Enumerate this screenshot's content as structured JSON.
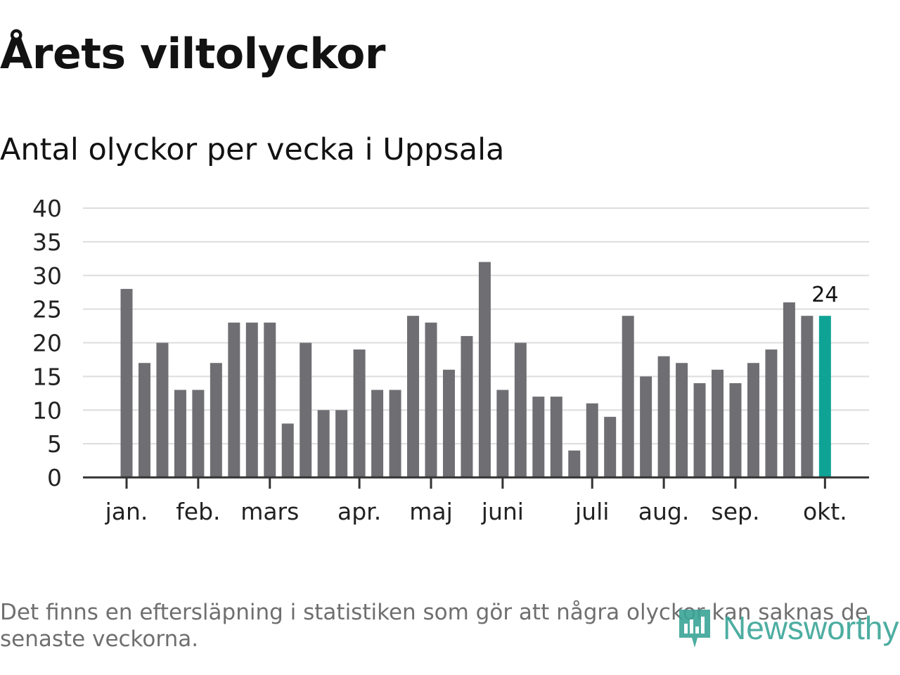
{
  "title": "Årets viltolyckor",
  "subtitle": "Antal olyckor per vecka i Uppsala",
  "footnote": "Det finns en eftersläpning i statistiken som gör att några olyckor kan saknas de senaste veckorna.",
  "logo": {
    "text": "Newsworthy",
    "icon": "chart-bars-icon"
  },
  "colors": {
    "bar": "#6f6e73",
    "highlight": "#0fa396",
    "grid": "#dddddd",
    "axis": "#333333"
  },
  "chart_data": {
    "type": "bar",
    "title": "Antal olyckor per vecka i Uppsala",
    "xlabel": "",
    "ylabel": "",
    "ylim": [
      0,
      40
    ],
    "yticks": [
      "0",
      "5",
      "10",
      "15",
      "20",
      "25",
      "30",
      "35",
      "40"
    ],
    "values": [
      28,
      17,
      20,
      13,
      13,
      17,
      23,
      23,
      23,
      8,
      20,
      10,
      10,
      19,
      13,
      13,
      24,
      23,
      16,
      21,
      32,
      13,
      20,
      12,
      12,
      4,
      11,
      9,
      24,
      15,
      18,
      17,
      14,
      16,
      14,
      17,
      19,
      26,
      24,
      24
    ],
    "highlight_index": 39,
    "value_label": "24",
    "month_labels": [
      {
        "label": "jan.",
        "bar_index": 0
      },
      {
        "label": "feb.",
        "bar_index": 4
      },
      {
        "label": "mars",
        "bar_index": 8
      },
      {
        "label": "apr.",
        "bar_index": 13
      },
      {
        "label": "maj",
        "bar_index": 17
      },
      {
        "label": "juni",
        "bar_index": 21
      },
      {
        "label": "juli",
        "bar_index": 26
      },
      {
        "label": "aug.",
        "bar_index": 30
      },
      {
        "label": "sep.",
        "bar_index": 34
      },
      {
        "label": "okt.",
        "bar_index": 39
      }
    ]
  }
}
